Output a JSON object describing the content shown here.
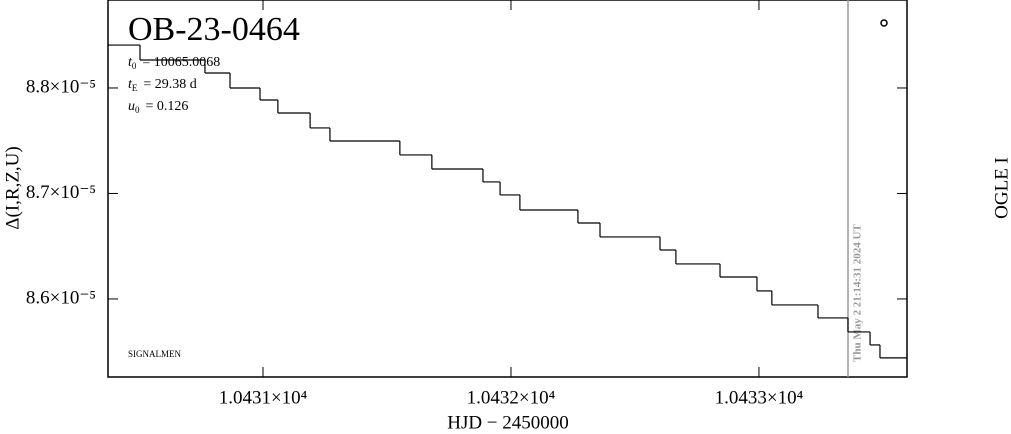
{
  "chart_data": {
    "type": "step",
    "title": "OB-23-0464",
    "annotations": [
      {
        "symbol": "t",
        "subscript": "0",
        "text": "= 10065.0068"
      },
      {
        "symbol": "t",
        "subscript": "E",
        "text": "= 29.38 d"
      },
      {
        "symbol": "u",
        "subscript": "0",
        "text": "= 0.126"
      }
    ],
    "credit": "SIGNALMEN",
    "timestamp": "Thu May  2 21:14:31 2024 UT",
    "side_label": "OGLE I",
    "x_label": "HJD − 2450000",
    "y_label": "Δ(I,R,Z,U)",
    "color": "#000000",
    "x": [
      10430.375,
      10430.504,
      10430.766,
      10430.867,
      10430.988,
      10431.06,
      10431.19,
      10431.27,
      10431.552,
      10431.681,
      10431.887,
      10431.956,
      10432.036,
      10432.27,
      10432.359,
      10432.601,
      10432.665,
      10432.843,
      10432.992,
      10433.052,
      10433.238,
      10433.359,
      10433.448,
      10433.488
    ],
    "values": [
      8.8407e-05,
      8.8265e-05,
      8.8142e-05,
      8.8e-05,
      8.7886e-05,
      8.7763e-05,
      8.7621e-05,
      8.7497e-05,
      8.7365e-05,
      8.7232e-05,
      8.7109e-05,
      8.6986e-05,
      8.6843e-05,
      8.672e-05,
      8.6588e-05,
      8.6464e-05,
      8.6332e-05,
      8.6208e-05,
      8.6076e-05,
      8.5943e-05,
      8.582e-05,
      8.5687e-05,
      8.5564e-05,
      8.5441e-05
    ],
    "xlim": [
      10430.375,
      10433.597
    ],
    "ylim": [
      8.526e-05,
      8.8834e-05
    ],
    "xticks": [
      {
        "value": 10431,
        "label": "1.0431×10⁴"
      },
      {
        "value": 10432,
        "label": "1.0432×10⁴"
      },
      {
        "value": 10433,
        "label": "1.0433×10⁴"
      }
    ],
    "yticks": [
      {
        "value": 8.8e-05,
        "label": "8.8×10⁻⁵"
      },
      {
        "value": 8.7e-05,
        "label": "8.7×10⁻⁵"
      },
      {
        "value": 8.6e-05,
        "label": "8.6×10⁻⁵"
      }
    ]
  }
}
